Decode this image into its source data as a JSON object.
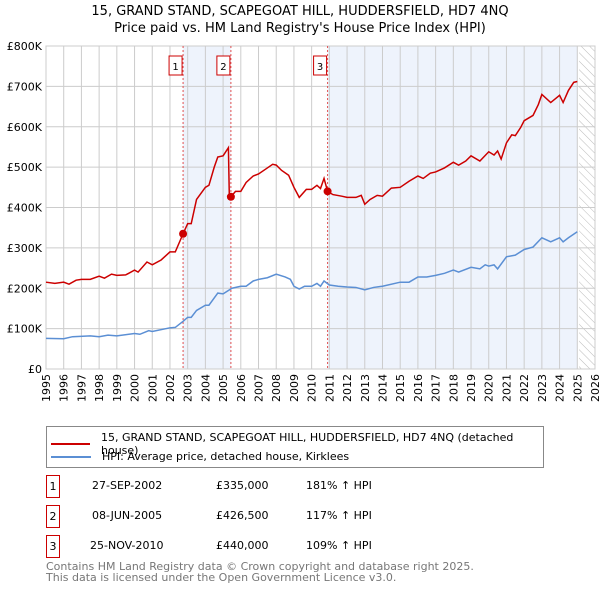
{
  "header": {
    "title": "15, GRAND STAND, SCAPEGOAT HILL, HUDDERSFIELD, HD7 4NQ",
    "subtitle": "Price paid vs. HM Land Registry's House Price Index (HPI)"
  },
  "chart_data": {
    "type": "line",
    "title": "15, GRAND STAND, SCAPEGOAT HILL, HUDDERSFIELD, HD7 4NQ",
    "subtitle": "Price paid vs. HM Land Registry's House Price Index (HPI)",
    "xlim": [
      1995,
      2026
    ],
    "ylim": [
      0,
      800000
    ],
    "y_ticks": [
      {
        "v": 0,
        "label": "£0"
      },
      {
        "v": 100000,
        "label": "£100K"
      },
      {
        "v": 200000,
        "label": "£200K"
      },
      {
        "v": 300000,
        "label": "£300K"
      },
      {
        "v": 400000,
        "label": "£400K"
      },
      {
        "v": 500000,
        "label": "£500K"
      },
      {
        "v": 600000,
        "label": "£600K"
      },
      {
        "v": 700000,
        "label": "£700K"
      },
      {
        "v": 800000,
        "label": "£800K"
      }
    ],
    "x_ticks": [
      "1995",
      "1996",
      "1997",
      "1998",
      "1999",
      "2000",
      "2001",
      "2002",
      "2003",
      "2004",
      "2005",
      "2006",
      "2007",
      "2008",
      "2009",
      "2010",
      "2011",
      "2012",
      "2013",
      "2014",
      "2015",
      "2016",
      "2017",
      "2018",
      "2019",
      "2020",
      "2021",
      "2022",
      "2023",
      "2024",
      "2025",
      "2026"
    ],
    "grid": true,
    "shaded_ranges": [
      [
        2002.74,
        2005.44
      ],
      [
        2010.9,
        2025.0
      ]
    ],
    "hatched_from": 2025.1,
    "series": [
      {
        "name": "15, GRAND STAND, SCAPEGOAT HILL, HUDDERSFIELD, HD7 4NQ (detached house)",
        "color": "#cc0000",
        "points": [
          [
            1995,
            215
          ],
          [
            1995.5,
            212
          ],
          [
            1996,
            215
          ],
          [
            1996.3,
            210
          ],
          [
            1996.7,
            220
          ],
          [
            1997,
            222
          ],
          [
            1997.5,
            222
          ],
          [
            1998,
            230
          ],
          [
            1998.3,
            225
          ],
          [
            1998.7,
            235
          ],
          [
            1999,
            232
          ],
          [
            1999.5,
            233
          ],
          [
            2000,
            245
          ],
          [
            2000.2,
            240
          ],
          [
            2000.7,
            265
          ],
          [
            2001,
            258
          ],
          [
            2001.5,
            270
          ],
          [
            2002,
            290
          ],
          [
            2002.3,
            290
          ],
          [
            2002.74,
            335
          ],
          [
            2003,
            360
          ],
          [
            2003.2,
            360
          ],
          [
            2003.5,
            420
          ],
          [
            2004,
            450
          ],
          [
            2004.2,
            455
          ],
          [
            2004.5,
            500
          ],
          [
            2004.7,
            525
          ],
          [
            2005,
            528
          ],
          [
            2005.3,
            548
          ],
          [
            2005.35,
            430
          ],
          [
            2005.44,
            426.5
          ],
          [
            2005.7,
            440
          ],
          [
            2006,
            440
          ],
          [
            2006.3,
            462
          ],
          [
            2006.7,
            478
          ],
          [
            2007,
            483
          ],
          [
            2007.5,
            498
          ],
          [
            2007.8,
            507
          ],
          [
            2008,
            505
          ],
          [
            2008.3,
            492
          ],
          [
            2008.7,
            480
          ],
          [
            2009,
            450
          ],
          [
            2009.3,
            425
          ],
          [
            2009.7,
            445
          ],
          [
            2010,
            445
          ],
          [
            2010.3,
            455
          ],
          [
            2010.5,
            447
          ],
          [
            2010.7,
            472
          ],
          [
            2010.9,
            440
          ],
          [
            2011.2,
            432
          ],
          [
            2011.7,
            428
          ],
          [
            2012,
            425
          ],
          [
            2012.5,
            425
          ],
          [
            2012.8,
            430
          ],
          [
            2013,
            408
          ],
          [
            2013.3,
            420
          ],
          [
            2013.7,
            430
          ],
          [
            2014,
            428
          ],
          [
            2014.5,
            448
          ],
          [
            2015,
            450
          ],
          [
            2015.5,
            465
          ],
          [
            2016,
            478
          ],
          [
            2016.3,
            472
          ],
          [
            2016.7,
            485
          ],
          [
            2017,
            488
          ],
          [
            2017.5,
            498
          ],
          [
            2018,
            512
          ],
          [
            2018.3,
            505
          ],
          [
            2018.7,
            515
          ],
          [
            2019,
            528
          ],
          [
            2019.5,
            515
          ],
          [
            2020,
            538
          ],
          [
            2020.3,
            530
          ],
          [
            2020.5,
            540
          ],
          [
            2020.7,
            520
          ],
          [
            2021,
            560
          ],
          [
            2021.3,
            580
          ],
          [
            2021.5,
            578
          ],
          [
            2021.8,
            598
          ],
          [
            2022,
            615
          ],
          [
            2022.5,
            628
          ],
          [
            2022.8,
            655
          ],
          [
            2023,
            680
          ],
          [
            2023.5,
            660
          ],
          [
            2024,
            678
          ],
          [
            2024.2,
            660
          ],
          [
            2024.5,
            690
          ],
          [
            2024.8,
            710
          ],
          [
            2025,
            712
          ]
        ]
      },
      {
        "name": "HPI: Average price, detached house, Kirklees",
        "color": "#5b8fd4",
        "points": [
          [
            1995,
            76
          ],
          [
            1996,
            75
          ],
          [
            1996.5,
            80
          ],
          [
            1997.5,
            82
          ],
          [
            1998,
            80
          ],
          [
            1998.5,
            84
          ],
          [
            1999,
            82
          ],
          [
            2000,
            88
          ],
          [
            2000.3,
            86
          ],
          [
            2000.8,
            95
          ],
          [
            2001,
            93
          ],
          [
            2002,
            102
          ],
          [
            2002.3,
            103
          ],
          [
            2002.74,
            118
          ],
          [
            2003,
            128
          ],
          [
            2003.2,
            128
          ],
          [
            2003.5,
            145
          ],
          [
            2004,
            158
          ],
          [
            2004.2,
            158
          ],
          [
            2004.7,
            188
          ],
          [
            2005,
            186
          ],
          [
            2005.5,
            200
          ],
          [
            2006,
            205
          ],
          [
            2006.3,
            205
          ],
          [
            2006.7,
            218
          ],
          [
            2007,
            222
          ],
          [
            2007.5,
            226
          ],
          [
            2008,
            235
          ],
          [
            2008.5,
            228
          ],
          [
            2008.8,
            222
          ],
          [
            2009,
            205
          ],
          [
            2009.3,
            198
          ],
          [
            2009.6,
            205
          ],
          [
            2010,
            205
          ],
          [
            2010.3,
            212
          ],
          [
            2010.5,
            205
          ],
          [
            2010.7,
            218
          ],
          [
            2011,
            208
          ],
          [
            2011.5,
            205
          ],
          [
            2012,
            203
          ],
          [
            2012.5,
            202
          ],
          [
            2013,
            196
          ],
          [
            2013.5,
            202
          ],
          [
            2014,
            205
          ],
          [
            2015,
            215
          ],
          [
            2015.5,
            215
          ],
          [
            2016,
            228
          ],
          [
            2016.5,
            228
          ],
          [
            2017,
            232
          ],
          [
            2017.5,
            237
          ],
          [
            2018,
            245
          ],
          [
            2018.3,
            240
          ],
          [
            2019,
            252
          ],
          [
            2019.5,
            248
          ],
          [
            2019.8,
            258
          ],
          [
            2020,
            255
          ],
          [
            2020.3,
            258
          ],
          [
            2020.5,
            248
          ],
          [
            2021,
            278
          ],
          [
            2021.5,
            282
          ],
          [
            2022,
            296
          ],
          [
            2022.5,
            302
          ],
          [
            2023,
            325
          ],
          [
            2023.5,
            315
          ],
          [
            2024,
            325
          ],
          [
            2024.2,
            315
          ],
          [
            2024.5,
            325
          ],
          [
            2025,
            340
          ]
        ]
      }
    ],
    "sales": [
      {
        "label": "1",
        "x": 2002.74,
        "date": "27-SEP-2002",
        "price": 335000,
        "price_label": "£335,000",
        "hpi": "181% ↑ HPI"
      },
      {
        "label": "2",
        "x": 2005.44,
        "date": "08-JUN-2005",
        "price": 426500,
        "price_label": "£426,500",
        "hpi": "117% ↑ HPI"
      },
      {
        "label": "3",
        "x": 2010.9,
        "date": "25-NOV-2010",
        "price": 440000,
        "price_label": "£440,000",
        "hpi": "109% ↑ HPI"
      }
    ]
  },
  "legend": {
    "red": "15, GRAND STAND, SCAPEGOAT HILL, HUDDERSFIELD, HD7 4NQ (detached house)",
    "blue": "HPI: Average price, detached house, Kirklees"
  },
  "footer": {
    "line1": "Contains HM Land Registry data © Crown copyright and database right 2025.",
    "line2": "This data is licensed under the Open Government Licence v3.0."
  }
}
